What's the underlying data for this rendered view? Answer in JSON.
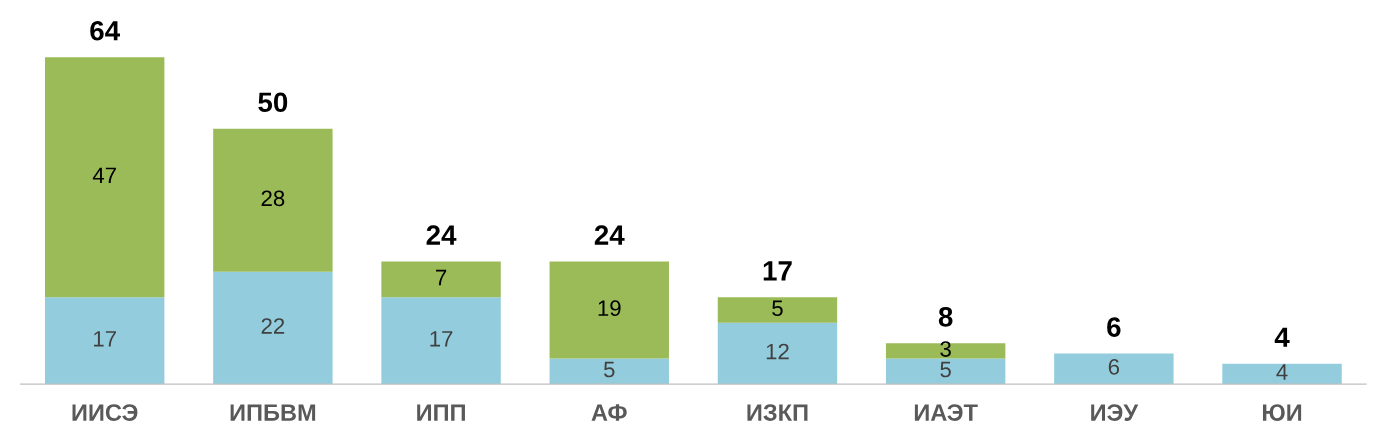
{
  "chart_data": {
    "type": "bar",
    "stacked": true,
    "data_labels": true,
    "categories": [
      "ИИСЭ",
      "ИПБВМ",
      "ИПП",
      "АФ",
      "ИЗКП",
      "ИАЭТ",
      "ИЭУ",
      "ЮИ"
    ],
    "series": [
      {
        "color": "#93cddd",
        "values": [
          17,
          22,
          17,
          5,
          12,
          5,
          6,
          4
        ]
      },
      {
        "color": "#9bbb59",
        "values": [
          47,
          28,
          7,
          19,
          5,
          3,
          null,
          null
        ]
      }
    ],
    "totals": [
      "64",
      "50",
      "24",
      "24",
      "17",
      "8",
      "6",
      "4"
    ],
    "grid": false,
    "legend": false
  }
}
